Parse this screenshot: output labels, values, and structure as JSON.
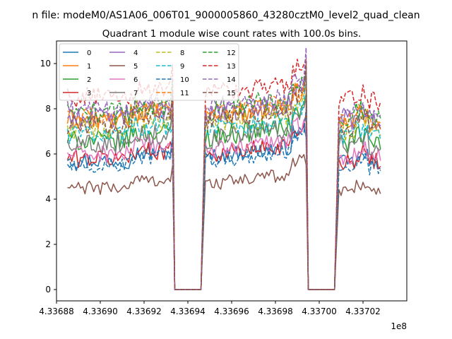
{
  "suptitle": "n file: modeM0/AS1A06_006T01_9000005860_43280cztM0_level2_quad_clean",
  "chart_data": {
    "type": "line",
    "title": "Quadrant 1 module wise count rates with 100.0s bins.",
    "xlabel": "",
    "ylabel": "",
    "x_offset_label": "1e8",
    "xlim": [
      433688000,
      433704000
    ],
    "ylim": [
      -0.5,
      11
    ],
    "x_ticks": [
      433688000,
      433690000,
      433692000,
      433694000,
      433696000,
      433698000,
      433700000,
      433702000
    ],
    "x_tick_labels": [
      "4.33688",
      "4.33690",
      "4.33692",
      "4.33694",
      "4.33696",
      "4.33698",
      "4.33700",
      "4.33702"
    ],
    "y_ticks": [
      0,
      2,
      4,
      6,
      8,
      10
    ],
    "y_tick_labels": [
      "0",
      "2",
      "4",
      "6",
      "8",
      "10"
    ],
    "grid": false,
    "legend_position": "upper-left",
    "legend_columns": 4,
    "segments": [
      {
        "x_start": 433688500,
        "x_end": 433693300,
        "n": 49
      },
      {
        "x_start": 433694800,
        "x_end": 433699400,
        "n": 47
      },
      {
        "x_start": 433700900,
        "x_end": 433702800,
        "n": 20
      }
    ],
    "gaps": [
      {
        "x_from": 433693300,
        "x_flat_start": 433693400,
        "x_flat_end": 433694600,
        "x_to": 433694800,
        "value": 0
      },
      {
        "x_from": 433699400,
        "x_flat_start": 433699500,
        "x_flat_end": 433700700,
        "x_to": 433700900,
        "value": 0
      }
    ],
    "series": [
      {
        "name": "0",
        "color": "#1f77b4",
        "style": "solid",
        "level": 5.7,
        "noise": 0.35
      },
      {
        "name": "1",
        "color": "#ff7f0e",
        "style": "solid",
        "level": 7.5,
        "noise": 0.45
      },
      {
        "name": "2",
        "color": "#2ca02c",
        "style": "solid",
        "level": 6.6,
        "noise": 0.45
      },
      {
        "name": "3",
        "color": "#d62728",
        "style": "solid",
        "level": 5.8,
        "noise": 0.4
      },
      {
        "name": "4",
        "color": "#9467bd",
        "style": "solid",
        "level": 7.6,
        "noise": 0.45
      },
      {
        "name": "5",
        "color": "#8c564b",
        "style": "solid",
        "level": 4.5,
        "noise": 0.3
      },
      {
        "name": "6",
        "color": "#e377c2",
        "style": "solid",
        "level": 6.0,
        "noise": 0.4
      },
      {
        "name": "7",
        "color": "#7f7f7f",
        "style": "solid",
        "level": 6.5,
        "noise": 0.45
      },
      {
        "name": "8",
        "color": "#bcbd22",
        "style": "dashed",
        "level": 7.1,
        "noise": 0.45
      },
      {
        "name": "9",
        "color": "#17becf",
        "style": "dashed",
        "level": 6.9,
        "noise": 0.45
      },
      {
        "name": "10",
        "color": "#1f77b4",
        "style": "dashed",
        "level": 5.5,
        "noise": 0.35
      },
      {
        "name": "11",
        "color": "#ff7f0e",
        "style": "dashed",
        "level": 7.6,
        "noise": 0.45
      },
      {
        "name": "12",
        "color": "#2ca02c",
        "style": "dashed",
        "level": 7.8,
        "noise": 0.5
      },
      {
        "name": "13",
        "color": "#d62728",
        "style": "dashed",
        "level": 8.5,
        "noise": 0.45
      },
      {
        "name": "14",
        "color": "#9467bd",
        "style": "dashed",
        "level": 7.9,
        "noise": 0.45
      },
      {
        "name": "15",
        "color": "#8c564b",
        "style": "dashed",
        "level": 7.3,
        "noise": 0.45
      }
    ]
  }
}
